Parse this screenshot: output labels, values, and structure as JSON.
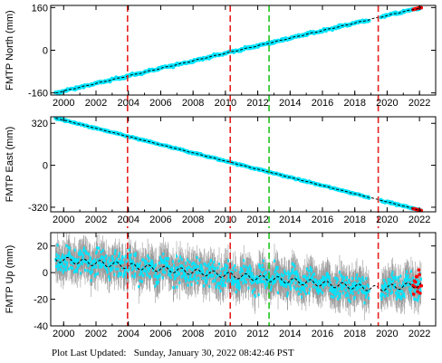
{
  "footer": {
    "label": "Plot Last Updated:",
    "value": "Sunday, January 30, 2022 08:42:46 PST"
  },
  "chart_data": [
    {
      "type": "scatter",
      "ylabel": "FMTP North (mm)",
      "xlim": [
        1999.2,
        2023.0
      ],
      "ylim": [
        -168,
        168
      ],
      "yticks": [
        -160,
        0,
        160
      ],
      "xticks": [
        2000,
        2002,
        2004,
        2006,
        2008,
        2010,
        2012,
        2014,
        2016,
        2018,
        2020,
        2022
      ],
      "trend": [
        [
          1999.5,
          -160
        ],
        [
          2022.1,
          160
        ]
      ],
      "gaps": [
        [
          2018.9,
          2019.6
        ]
      ],
      "noise": 3,
      "colors": {
        "points": "#00e5ff",
        "errorbars": "#9a9a9a",
        "trend": "#000000",
        "recent": "#ff0000"
      }
    },
    {
      "type": "scatter",
      "ylabel": "FMTP East (mm)",
      "xlim": [
        1999.2,
        2023.0
      ],
      "ylim": [
        -355,
        370
      ],
      "yticks": [
        -320,
        0,
        320
      ],
      "xticks": [
        2000,
        2002,
        2004,
        2006,
        2008,
        2010,
        2012,
        2014,
        2016,
        2018,
        2020,
        2022
      ],
      "trend": [
        [
          1999.5,
          360
        ],
        [
          2022.1,
          -345
        ]
      ],
      "gaps": [
        [
          2018.9,
          2019.6
        ]
      ],
      "noise": 4,
      "colors": {
        "points": "#00e5ff",
        "errorbars": "#9a9a9a",
        "trend": "#000000",
        "recent": "#ff0000"
      }
    },
    {
      "type": "scatter",
      "ylabel": "FMTP Up (mm)",
      "xlim": [
        1999.2,
        2023.0
      ],
      "ylim": [
        -40,
        30
      ],
      "yticks": [
        -40,
        -20,
        0,
        20
      ],
      "xticks": [
        2000,
        2002,
        2004,
        2006,
        2008,
        2010,
        2012,
        2014,
        2016,
        2018,
        2020,
        2022
      ],
      "trend": [
        [
          1999.5,
          10
        ],
        [
          2019.3,
          -12
        ],
        [
          2022.1,
          -9
        ]
      ],
      "gaps": [
        [
          2018.9,
          2019.6
        ]
      ],
      "noise": 7,
      "colors": {
        "points": "#00e5ff",
        "errorbars": "#9a9a9a",
        "trend": "#000000",
        "recent": "#ff0000"
      }
    }
  ],
  "events": [
    {
      "year": 2003.95,
      "color": "#e8201f"
    },
    {
      "year": 2010.3,
      "color": "#e8201f"
    },
    {
      "year": 2012.7,
      "color": "#21c421"
    },
    {
      "year": 2019.45,
      "color": "#e8201f"
    }
  ]
}
